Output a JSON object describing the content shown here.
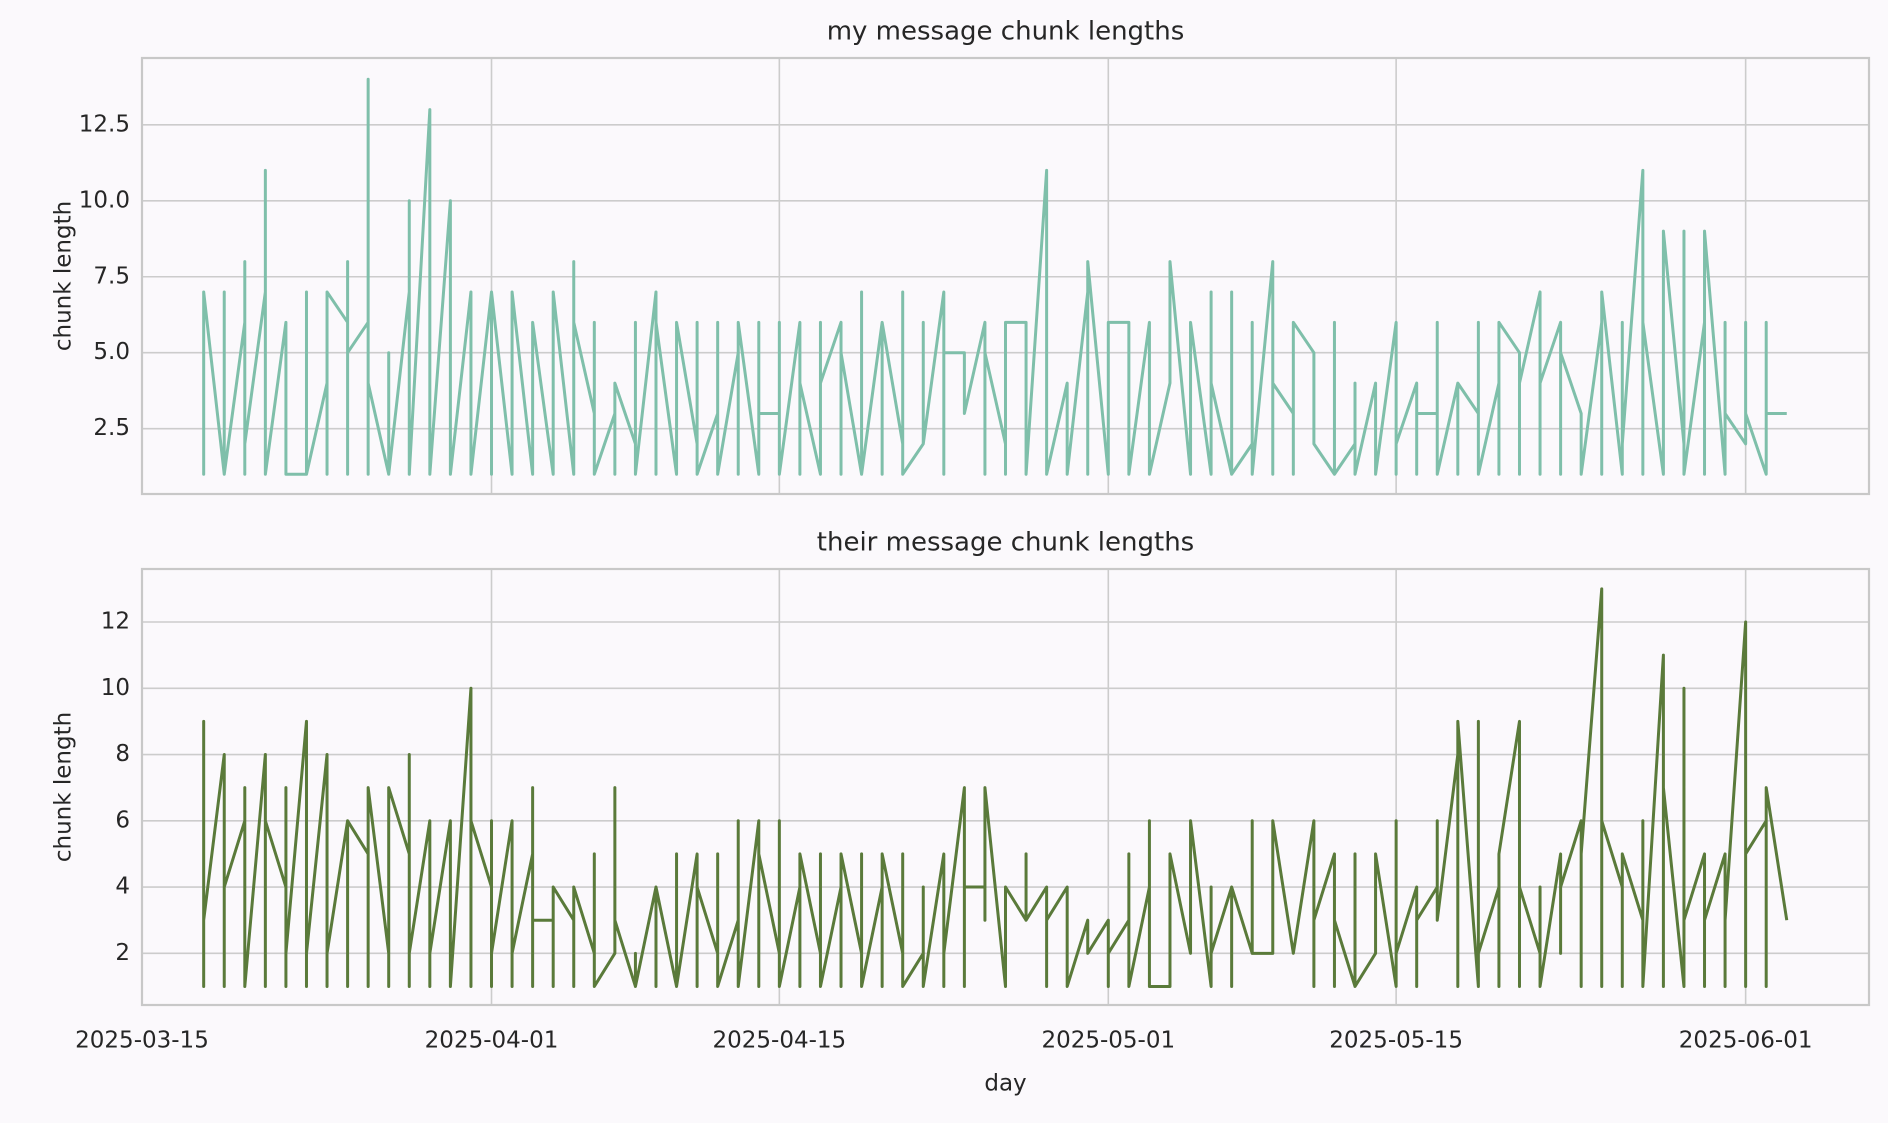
{
  "chart_data": [
    {
      "type": "line",
      "title": "my message chunk lengths",
      "ylabel": "chunk length",
      "color": "#7fbfaa",
      "grid": true,
      "xlim": [
        "2025-03-15",
        "2025-06-07"
      ],
      "xticks": [
        "2025-03-15",
        "2025-04-01",
        "2025-04-15",
        "2025-05-01",
        "2025-05-15",
        "2025-06-01"
      ],
      "ylim": [
        0.35,
        14.7
      ],
      "yticks": [
        2.5,
        {
          "value": 5,
          "label": "5.0"
        },
        7.5,
        {
          "value": 10,
          "label": "10.0"
        },
        12.5
      ],
      "x": [
        "2025-03-18",
        "2025-03-18",
        "2025-03-18",
        "2025-03-18",
        "2025-03-19",
        "2025-03-19",
        "2025-03-19",
        "2025-03-19",
        "2025-03-20",
        "2025-03-20",
        "2025-03-20",
        "2025-03-20",
        "2025-03-21",
        "2025-03-21",
        "2025-03-21",
        "2025-03-21",
        "2025-03-21",
        "2025-03-22",
        "2025-03-22",
        "2025-03-22",
        "2025-03-22",
        "2025-03-23",
        "2025-03-23",
        "2025-03-23",
        "2025-03-23",
        "2025-03-24",
        "2025-03-24",
        "2025-03-24",
        "2025-03-24",
        "2025-03-24",
        "2025-03-25",
        "2025-03-25",
        "2025-03-25",
        "2025-03-25",
        "2025-03-25",
        "2025-03-26",
        "2025-03-26",
        "2025-03-26",
        "2025-03-26",
        "2025-03-27",
        "2025-03-27",
        "2025-03-27",
        "2025-03-27",
        "2025-03-28",
        "2025-03-28",
        "2025-03-28",
        "2025-03-28",
        "2025-03-29",
        "2025-03-29",
        "2025-03-29",
        "2025-03-29",
        "2025-03-30",
        "2025-03-30",
        "2025-03-30",
        "2025-03-30",
        "2025-03-31",
        "2025-03-31",
        "2025-03-31",
        "2025-03-31",
        "2025-04-01",
        "2025-04-01",
        "2025-04-01",
        "2025-04-01",
        "2025-04-01",
        "2025-04-02",
        "2025-04-02",
        "2025-04-02",
        "2025-04-02",
        "2025-04-03",
        "2025-04-03",
        "2025-04-03",
        "2025-04-03",
        "2025-04-04",
        "2025-04-04",
        "2025-04-04",
        "2025-04-04",
        "2025-04-05",
        "2025-04-05",
        "2025-04-05",
        "2025-04-05",
        "2025-04-06",
        "2025-04-06",
        "2025-04-06",
        "2025-04-07",
        "2025-04-07",
        "2025-04-07",
        "2025-04-08",
        "2025-04-08",
        "2025-04-08",
        "2025-04-09",
        "2025-04-09",
        "2025-04-09",
        "2025-04-10",
        "2025-04-10",
        "2025-04-10",
        "2025-04-11",
        "2025-04-11",
        "2025-04-11",
        "2025-04-12",
        "2025-04-12",
        "2025-04-12",
        "2025-04-13",
        "2025-04-13",
        "2025-04-13",
        "2025-04-14",
        "2025-04-14",
        "2025-04-14",
        "2025-04-15",
        "2025-04-15",
        "2025-04-15",
        "2025-04-16",
        "2025-04-16",
        "2025-04-16",
        "2025-04-17",
        "2025-04-17",
        "2025-04-17",
        "2025-04-18",
        "2025-04-18",
        "2025-04-18",
        "2025-04-19",
        "2025-04-19",
        "2025-04-19",
        "2025-04-20",
        "2025-04-20",
        "2025-04-20",
        "2025-04-21",
        "2025-04-21",
        "2025-04-21",
        "2025-04-22",
        "2025-04-22",
        "2025-04-22",
        "2025-04-23",
        "2025-04-23",
        "2025-04-23",
        "2025-04-24",
        "2025-04-24",
        "2025-04-24",
        "2025-04-25",
        "2025-04-25",
        "2025-04-25",
        "2025-04-26",
        "2025-04-26",
        "2025-04-26",
        "2025-04-27",
        "2025-04-27",
        "2025-04-27",
        "2025-04-28",
        "2025-04-28",
        "2025-04-28",
        "2025-04-29",
        "2025-04-29",
        "2025-04-29",
        "2025-04-30",
        "2025-04-30",
        "2025-04-30",
        "2025-05-01",
        "2025-05-01",
        "2025-05-01",
        "2025-05-02",
        "2025-05-02",
        "2025-05-02",
        "2025-05-03",
        "2025-05-03",
        "2025-05-03",
        "2025-05-04",
        "2025-05-04",
        "2025-05-04",
        "2025-05-05",
        "2025-05-05",
        "2025-05-05",
        "2025-05-06",
        "2025-05-06",
        "2025-05-06",
        "2025-05-07",
        "2025-05-07",
        "2025-05-07",
        "2025-05-08",
        "2025-05-08",
        "2025-05-08",
        "2025-05-09",
        "2025-05-09",
        "2025-05-09",
        "2025-05-10",
        "2025-05-10",
        "2025-05-10",
        "2025-05-11",
        "2025-05-11",
        "2025-05-11",
        "2025-05-12",
        "2025-05-12",
        "2025-05-12",
        "2025-05-13",
        "2025-05-13",
        "2025-05-13",
        "2025-05-14",
        "2025-05-14",
        "2025-05-14",
        "2025-05-15",
        "2025-05-15",
        "2025-05-15",
        "2025-05-16",
        "2025-05-16",
        "2025-05-16",
        "2025-05-17",
        "2025-05-17",
        "2025-05-17",
        "2025-05-18",
        "2025-05-18",
        "2025-05-18",
        "2025-05-19",
        "2025-05-19",
        "2025-05-19",
        "2025-05-20",
        "2025-05-20",
        "2025-05-20",
        "2025-05-21",
        "2025-05-21",
        "2025-05-21",
        "2025-05-22",
        "2025-05-22",
        "2025-05-22",
        "2025-05-23",
        "2025-05-23",
        "2025-05-23",
        "2025-05-24",
        "2025-05-24",
        "2025-05-24",
        "2025-05-25",
        "2025-05-25",
        "2025-05-25",
        "2025-05-26",
        "2025-05-26",
        "2025-05-26",
        "2025-05-27",
        "2025-05-27",
        "2025-05-27",
        "2025-05-28",
        "2025-05-28",
        "2025-05-28",
        "2025-05-29",
        "2025-05-29",
        "2025-05-29",
        "2025-05-30",
        "2025-05-30",
        "2025-05-30",
        "2025-05-31",
        "2025-05-31",
        "2025-05-31",
        "2025-06-01",
        "2025-06-01",
        "2025-06-01",
        "2025-06-02",
        "2025-06-02",
        "2025-06-02",
        "2025-06-03"
      ],
      "values": [
        2,
        7,
        1,
        7,
        1,
        4,
        7,
        1,
        6,
        1,
        8,
        2,
        7,
        1,
        6,
        11,
        1,
        6,
        1,
        6,
        1,
        1,
        7,
        6,
        1,
        4,
        1,
        7,
        1,
        7,
        6,
        1,
        8,
        1,
        5,
        6,
        14,
        1,
        4,
        1,
        3,
        5,
        1,
        7,
        1,
        10,
        1,
        13,
        1,
        9,
        1,
        10,
        1,
        5,
        1,
        7,
        2,
        5,
        1,
        7,
        2,
        5,
        1,
        7,
        1,
        5,
        1,
        7,
        1,
        5,
        2,
        6,
        1,
        5,
        3,
        7,
        1,
        8,
        1,
        6,
        3,
        6,
        1,
        3,
        1,
        4,
        2,
        6,
        1,
        7,
        1,
        6,
        1,
        4,
        6,
        2,
        6,
        1,
        3,
        6,
        1,
        5,
        1,
        6,
        1,
        6,
        3,
        3,
        6,
        1,
        6,
        1,
        4,
        1,
        6,
        4,
        6,
        1,
        5,
        1,
        7,
        1,
        6,
        1,
        6,
        2,
        7,
        1,
        2,
        6,
        2,
        7,
        1,
        5,
        5,
        4,
        3,
        6,
        1,
        5,
        2,
        1,
        6,
        6,
        4,
        1,
        11,
        6,
        1,
        4,
        3,
        1,
        7,
        1,
        8,
        1,
        2,
        6,
        6,
        2,
        1,
        6,
        2,
        1,
        4,
        6,
        8,
        1,
        2,
        6,
        1,
        7,
        4,
        1,
        7,
        1,
        2,
        6,
        1,
        8,
        1,
        4,
        3,
        1,
        6,
        5,
        3,
        2,
        1,
        6,
        1,
        2,
        4,
        1,
        4,
        3,
        1,
        6,
        1,
        2,
        4,
        1,
        3,
        3,
        6,
        1,
        4,
        1,
        4,
        3,
        6,
        1,
        4,
        1,
        6,
        5,
        1,
        4,
        7,
        1,
        4,
        6,
        1,
        5,
        3,
        2,
        1,
        6,
        1,
        7,
        1,
        6,
        2,
        11,
        1,
        6,
        1,
        3,
        9,
        2,
        9,
        1,
        6,
        1,
        9,
        1,
        6,
        3,
        2,
        6,
        3,
        1,
        6,
        3,
        3
      ]
    },
    {
      "type": "line",
      "title": "their message chunk lengths",
      "ylabel": "chunk length",
      "xlabel": "day",
      "color": "#5a7a3a",
      "grid": true,
      "xlim": [
        "2025-03-15",
        "2025-06-07"
      ],
      "xticks": [
        "2025-03-15",
        "2025-04-01",
        "2025-04-15",
        "2025-05-01",
        "2025-05-15",
        "2025-06-01"
      ],
      "ylim": [
        0.44,
        13.6
      ],
      "yticks": [
        2,
        4,
        6,
        8,
        10,
        12
      ],
      "x": [
        "2025-03-18",
        "2025-03-18",
        "2025-03-18",
        "2025-03-18",
        "2025-03-18",
        "2025-03-19",
        "2025-03-19",
        "2025-03-19",
        "2025-03-19",
        "2025-03-20",
        "2025-03-20",
        "2025-03-20",
        "2025-03-20",
        "2025-03-21",
        "2025-03-21",
        "2025-03-21",
        "2025-03-21",
        "2025-03-22",
        "2025-03-22",
        "2025-03-22",
        "2025-03-22",
        "2025-03-23",
        "2025-03-23",
        "2025-03-23",
        "2025-03-23",
        "2025-03-24",
        "2025-03-24",
        "2025-03-24",
        "2025-03-24",
        "2025-03-25",
        "2025-03-25",
        "2025-03-25",
        "2025-03-25",
        "2025-03-26",
        "2025-03-26",
        "2025-03-26",
        "2025-03-26",
        "2025-03-27",
        "2025-03-27",
        "2025-03-27",
        "2025-03-27",
        "2025-03-28",
        "2025-03-28",
        "2025-03-28",
        "2025-03-28",
        "2025-03-29",
        "2025-03-29",
        "2025-03-29",
        "2025-03-29",
        "2025-03-30",
        "2025-03-30",
        "2025-03-30",
        "2025-03-30",
        "2025-03-31",
        "2025-03-31",
        "2025-03-31",
        "2025-04-01",
        "2025-04-01",
        "2025-04-01",
        "2025-04-01",
        "2025-04-02",
        "2025-04-02",
        "2025-04-02",
        "2025-04-02",
        "2025-04-03",
        "2025-04-03",
        "2025-04-03",
        "2025-04-03",
        "2025-04-04",
        "2025-04-04",
        "2025-04-04",
        "2025-04-05",
        "2025-04-05",
        "2025-04-05",
        "2025-04-06",
        "2025-04-06",
        "2025-04-06",
        "2025-04-07",
        "2025-04-07",
        "2025-04-07",
        "2025-04-08",
        "2025-04-08",
        "2025-04-08",
        "2025-04-09",
        "2025-04-09",
        "2025-04-09",
        "2025-04-10",
        "2025-04-10",
        "2025-04-10",
        "2025-04-11",
        "2025-04-11",
        "2025-04-11",
        "2025-04-12",
        "2025-04-12",
        "2025-04-12",
        "2025-04-13",
        "2025-04-13",
        "2025-04-13",
        "2025-04-14",
        "2025-04-14",
        "2025-04-14",
        "2025-04-15",
        "2025-04-15",
        "2025-04-15",
        "2025-04-16",
        "2025-04-16",
        "2025-04-16",
        "2025-04-17",
        "2025-04-17",
        "2025-04-17",
        "2025-04-18",
        "2025-04-18",
        "2025-04-18",
        "2025-04-19",
        "2025-04-19",
        "2025-04-19",
        "2025-04-20",
        "2025-04-20",
        "2025-04-20",
        "2025-04-21",
        "2025-04-21",
        "2025-04-21",
        "2025-04-22",
        "2025-04-22",
        "2025-04-22",
        "2025-04-23",
        "2025-04-23",
        "2025-04-23",
        "2025-04-24",
        "2025-04-24",
        "2025-04-24",
        "2025-04-25",
        "2025-04-25",
        "2025-04-25",
        "2025-04-26",
        "2025-04-26",
        "2025-04-26",
        "2025-04-27",
        "2025-04-27",
        "2025-04-27",
        "2025-04-28",
        "2025-04-28",
        "2025-04-28",
        "2025-04-29",
        "2025-04-29",
        "2025-04-29",
        "2025-04-30",
        "2025-04-30",
        "2025-04-30",
        "2025-05-01",
        "2025-05-01",
        "2025-05-01",
        "2025-05-02",
        "2025-05-02",
        "2025-05-02",
        "2025-05-03",
        "2025-05-03",
        "2025-05-03",
        "2025-05-04",
        "2025-05-04",
        "2025-05-04",
        "2025-05-05",
        "2025-05-05",
        "2025-05-05",
        "2025-05-06",
        "2025-05-06",
        "2025-05-06",
        "2025-05-07",
        "2025-05-07",
        "2025-05-07",
        "2025-05-08",
        "2025-05-08",
        "2025-05-08",
        "2025-05-09",
        "2025-05-09",
        "2025-05-09",
        "2025-05-10",
        "2025-05-10",
        "2025-05-10",
        "2025-05-11",
        "2025-05-11",
        "2025-05-11",
        "2025-05-12",
        "2025-05-12",
        "2025-05-12",
        "2025-05-13",
        "2025-05-13",
        "2025-05-13",
        "2025-05-14",
        "2025-05-14",
        "2025-05-14",
        "2025-05-15",
        "2025-05-15",
        "2025-05-15",
        "2025-05-16",
        "2025-05-16",
        "2025-05-16",
        "2025-05-17",
        "2025-05-17",
        "2025-05-17",
        "2025-05-18",
        "2025-05-18",
        "2025-05-18",
        "2025-05-19",
        "2025-05-19",
        "2025-05-19",
        "2025-05-20",
        "2025-05-20",
        "2025-05-20",
        "2025-05-21",
        "2025-05-21",
        "2025-05-21",
        "2025-05-22",
        "2025-05-22",
        "2025-05-22",
        "2025-05-23",
        "2025-05-23",
        "2025-05-23",
        "2025-05-24",
        "2025-05-24",
        "2025-05-24",
        "2025-05-25",
        "2025-05-25",
        "2025-05-25",
        "2025-05-26",
        "2025-05-26",
        "2025-05-26",
        "2025-05-27",
        "2025-05-27",
        "2025-05-27",
        "2025-05-28",
        "2025-05-28",
        "2025-05-28",
        "2025-05-29",
        "2025-05-29",
        "2025-05-29",
        "2025-05-30",
        "2025-05-30",
        "2025-05-30",
        "2025-05-31",
        "2025-05-31",
        "2025-05-31",
        "2025-06-01",
        "2025-06-01",
        "2025-06-01",
        "2025-06-02",
        "2025-06-02",
        "2025-06-02",
        "2025-06-03"
      ],
      "values": [
        1,
        9,
        1,
        9,
        3,
        8,
        1,
        7,
        4,
        6,
        1,
        7,
        1,
        8,
        1,
        4,
        6,
        4,
        1,
        7,
        2,
        9,
        1,
        6,
        2,
        8,
        1,
        5,
        2,
        6,
        1,
        4,
        6,
        5,
        1,
        4,
        7,
        2,
        5,
        1,
        7,
        5,
        1,
        8,
        2,
        6,
        1,
        5,
        2,
        6,
        1,
        4,
        1,
        10,
        1,
        6,
        4,
        1,
        6,
        2,
        6,
        1,
        4,
        2,
        5,
        1,
        7,
        3,
        3,
        1,
        4,
        3,
        1,
        4,
        2,
        5,
        1,
        2,
        7,
        3,
        1,
        2,
        1,
        4,
        1,
        4,
        1,
        5,
        1,
        5,
        1,
        4,
        2,
        5,
        1,
        3,
        6,
        1,
        6,
        1,
        5,
        2,
        6,
        1,
        4,
        1,
        5,
        2,
        5,
        1,
        4,
        1,
        5,
        2,
        5,
        1,
        4,
        1,
        5,
        2,
        5,
        1,
        2,
        4,
        1,
        5,
        1,
        2,
        7,
        1,
        4,
        4,
        3,
        7,
        1,
        3,
        4,
        3,
        5,
        3,
        4,
        1,
        3,
        4,
        2,
        1,
        3,
        2,
        2,
        3,
        1,
        2,
        3,
        5,
        1,
        4,
        6,
        1,
        1,
        1,
        5,
        2,
        3,
        6,
        1,
        4,
        2,
        4,
        1,
        4,
        2,
        6,
        2,
        2,
        2,
        6,
        2,
        2,
        2,
        6,
        1,
        3,
        5,
        1,
        3,
        1,
        5,
        1,
        2,
        3,
        5,
        1,
        6,
        2,
        4,
        1,
        3,
        4,
        6,
        3,
        8,
        1,
        9,
        1,
        9,
        2,
        4,
        1,
        5,
        9,
        1,
        4,
        2,
        4,
        1,
        5,
        2,
        4,
        6,
        1,
        5,
        13,
        1,
        6,
        4,
        1,
        5,
        3,
        6,
        1,
        11,
        1,
        7,
        1,
        10,
        3,
        5,
        1,
        3,
        5,
        1,
        3,
        12,
        1,
        5,
        6,
        1,
        7,
        3
      ]
    }
  ]
}
